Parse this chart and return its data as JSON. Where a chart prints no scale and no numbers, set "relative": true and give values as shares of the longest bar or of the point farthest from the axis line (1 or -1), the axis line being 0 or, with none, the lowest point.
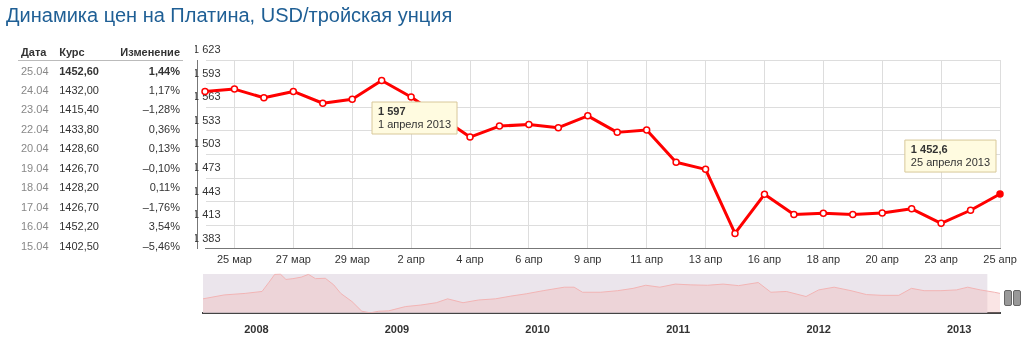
{
  "chart_data": [
    {
      "type": "other",
      "categories": [
        "Дата",
        "Курс",
        "Изменение"
      ],
      "cell_labels": [
        [
          "25.04",
          "1452,60",
          "1,44%"
        ],
        [
          "24.04",
          "1432,00",
          "1,17%"
        ],
        [
          "23.04",
          "1415,40",
          "–1,28%"
        ],
        [
          "22.04",
          "1433,80",
          "0,36%"
        ],
        [
          "20.04",
          "1428,60",
          "0,13%"
        ],
        [
          "19.04",
          "1426,70",
          "–0,10%"
        ],
        [
          "18.04",
          "1428,20",
          "0,11%"
        ],
        [
          "17.04",
          "1426,70",
          "–1,76%"
        ],
        [
          "16.04",
          "1452,20",
          "3,54%"
        ],
        [
          "15.04",
          "1402,50",
          "–5,46%"
        ]
      ]
    },
    {
      "type": "line",
      "title": "Динамика цен на Платина, USD/тройская унция",
      "categories": [
        null,
        "25 мар",
        null,
        "27 мар",
        null,
        "29 мар",
        null,
        "2 апр",
        null,
        "4 апр",
        null,
        "6 апр",
        null,
        "9 апр",
        null,
        "11 апр",
        null,
        "13 апр",
        null,
        "16 апр",
        null,
        "18 апр",
        null,
        "20 апр",
        null,
        "23 апр",
        null,
        "25 апр"
      ],
      "series": [
        {
          "color": "#ff0000",
          "values": [
            1583,
            1586,
            1575,
            1583,
            1568,
            1573,
            1597,
            1576,
            null,
            1525,
            1539,
            1541,
            1537,
            1552,
            1531,
            1534,
            1493,
            1484,
            1402.5,
            1452.2,
            1426.7,
            1428.2,
            1426.7,
            1428.6,
            1433.8,
            1415.4,
            1432.0,
            1452.6
          ]
        }
      ],
      "ylim": [
        1383,
        1623
      ],
      "yticks": [
        {
          "value": 1383,
          "label": "1 383"
        },
        {
          "value": 1413,
          "label": "1 413"
        },
        {
          "value": 1443,
          "label": "1 443"
        },
        {
          "value": 1473,
          "label": "1 473"
        },
        {
          "value": 1503,
          "label": "1 503"
        },
        {
          "value": 1533,
          "label": "1 533"
        },
        {
          "value": 1563,
          "label": "1 563"
        },
        {
          "value": 1593,
          "label": "1 593"
        },
        {
          "value": 1623,
          "label": "1 623"
        }
      ],
      "grid": true,
      "marker": "circle",
      "line_style": "solid",
      "legend": false,
      "annotations": [
        "1 597\n1 апреля 2013",
        {
          "text": "1 452,6\n25 апреля 2013",
          "x": "25 апр",
          "y": 1452.6
        }
      ]
    },
    {
      "type": "area",
      "relative": true,
      "tick_labels": "x",
      "legend": false,
      "x": [
        2007.62,
        2007.77,
        2007.92,
        2008.04,
        2008.09,
        2008.13,
        2008.17,
        2008.21,
        2008.26,
        2008.32,
        2008.37,
        2008.42,
        2008.49,
        2008.55,
        2008.6,
        2008.68,
        2008.75,
        2008.81,
        2008.87,
        2008.94,
        2009.06,
        2009.17,
        2009.28,
        2009.36,
        2009.47,
        2009.58,
        2009.7,
        2009.81,
        2009.92,
        2010.04,
        2010.19,
        2010.26,
        2010.32,
        2010.45,
        2010.57,
        2010.68,
        2010.77,
        2010.87,
        2010.98,
        2011.09,
        2011.21,
        2011.32,
        2011.43,
        2011.57,
        2011.66,
        2011.77,
        2011.91,
        2012.0,
        2012.11,
        2012.23,
        2012.34,
        2012.45,
        2012.57,
        2012.66,
        2012.75,
        2012.87,
        2012.98,
        2013.06,
        2013.15,
        2013.25,
        2013.29
      ],
      "series": [
        {
          "color": "#f2b4b4",
          "values": [
            0.36,
            0.46,
            0.5,
            0.55,
            0.79,
            0.99,
            1.0,
            0.86,
            0.88,
            0.92,
            0.99,
            0.88,
            0.89,
            0.72,
            0.5,
            0.29,
            0.04,
            0,
            0.04,
            0.05,
            0.16,
            0.2,
            0.26,
            0.36,
            0.26,
            0.33,
            0.36,
            0.43,
            0.49,
            0.57,
            0.66,
            0.66,
            0.53,
            0.53,
            0.57,
            0.63,
            0.71,
            0.66,
            0.74,
            0.72,
            0.71,
            0.74,
            0.7,
            0.78,
            0.53,
            0.55,
            0.42,
            0.59,
            0.66,
            0.57,
            0.47,
            0.45,
            0.45,
            0.63,
            0.57,
            0.57,
            0.59,
            0.66,
            0.59,
            0.53,
            0.5
          ]
        }
      ],
      "xlim": [
        2007.62,
        2013.29
      ],
      "xticks": [
        2008,
        2009,
        2010,
        2011,
        2012,
        2013
      ],
      "bands": [
        {
          "axis": "x",
          "from": 2007.62,
          "to": 2013.2,
          "color": "#ebe5ec"
        }
      ]
    }
  ]
}
